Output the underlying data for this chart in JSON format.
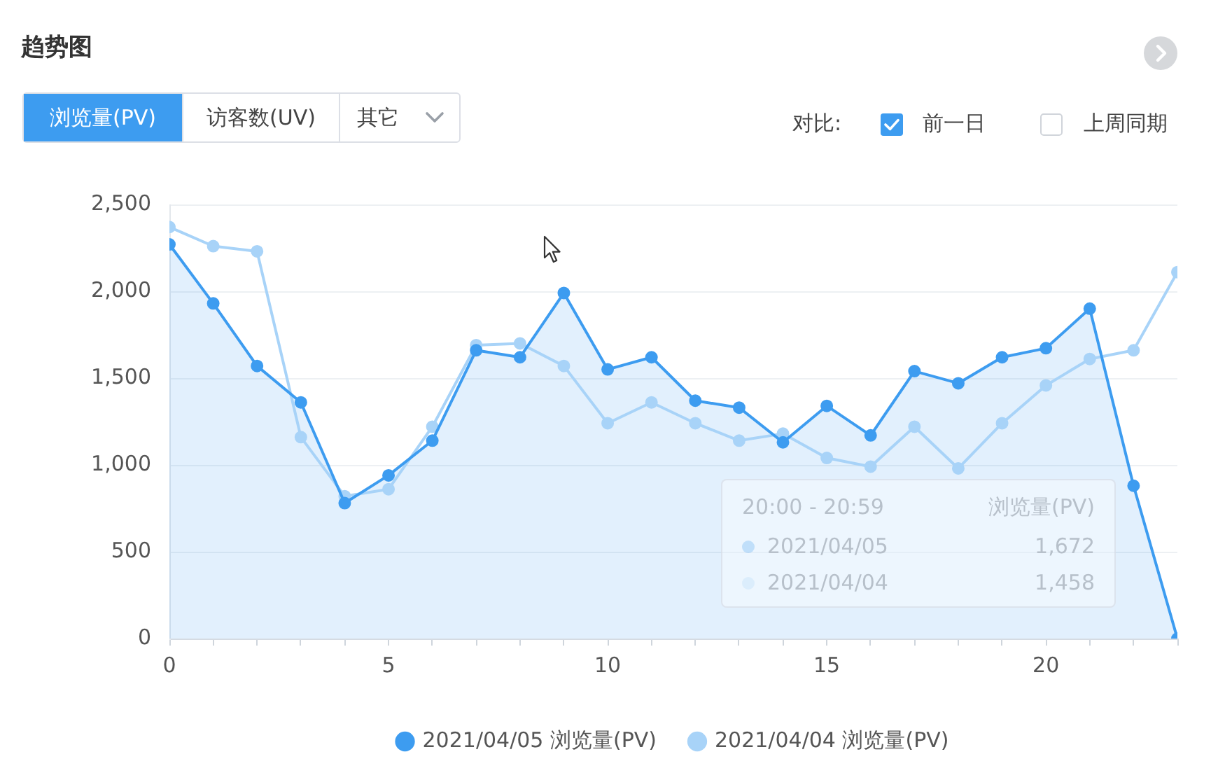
{
  "chart_data": {
    "type": "line",
    "title": "趋势图",
    "x": [
      0,
      1,
      2,
      3,
      4,
      5,
      6,
      7,
      8,
      9,
      10,
      11,
      12,
      13,
      14,
      15,
      16,
      17,
      18,
      19,
      20,
      21,
      22,
      23
    ],
    "series": [
      {
        "name": "2021/04/05 浏览量(PV)",
        "type": "area",
        "color": "#3d9cf0",
        "values": [
          2270,
          1930,
          1570,
          1360,
          780,
          940,
          1140,
          1660,
          1620,
          1990,
          1550,
          1620,
          1370,
          1330,
          1130,
          1340,
          1170,
          1540,
          1470,
          1620,
          1672,
          1900,
          880,
          0
        ]
      },
      {
        "name": "2021/04/04 浏览量(PV)",
        "type": "line",
        "color": "#a8d3f8",
        "values": [
          2370,
          2260,
          2230,
          1160,
          820,
          860,
          1220,
          1690,
          1700,
          1570,
          1240,
          1360,
          1240,
          1140,
          1180,
          1040,
          990,
          1220,
          980,
          1240,
          1458,
          1610,
          1660,
          2110
        ]
      }
    ],
    "xlim": [
      0,
      23
    ],
    "xticks": [
      0,
      {
        "value": 1,
        "label": null
      },
      {
        "value": 2,
        "label": null
      },
      {
        "value": 3,
        "label": null
      },
      {
        "value": 4,
        "label": null
      },
      5,
      {
        "value": 6,
        "label": null
      },
      {
        "value": 7,
        "label": null
      },
      {
        "value": 8,
        "label": null
      },
      {
        "value": 9,
        "label": null
      },
      10,
      {
        "value": 11,
        "label": null
      },
      {
        "value": 12,
        "label": null
      },
      {
        "value": 13,
        "label": null
      },
      {
        "value": 14,
        "label": null
      },
      15,
      {
        "value": 16,
        "label": null
      },
      {
        "value": 17,
        "label": null
      },
      {
        "value": 18,
        "label": null
      },
      {
        "value": 19,
        "label": null
      },
      20,
      {
        "value": 21,
        "label": null
      },
      {
        "value": 22,
        "label": null
      },
      {
        "value": 23,
        "label": null
      }
    ],
    "ylim": [
      0,
      2500
    ],
    "yticks": [
      0,
      500,
      {
        "value": 1000,
        "label": "1,000"
      },
      {
        "value": 1500,
        "label": "1,500"
      },
      {
        "value": 2000,
        "label": "2,000"
      },
      {
        "value": 2500,
        "label": "2,500"
      }
    ],
    "grid": "y",
    "legend": "bottom",
    "marker": "circle",
    "line_style": "solid",
    "annotations": [
      "浏览量(PV)",
      "访客数(UV)",
      "其它",
      "对比:",
      "前一日",
      "上周同期",
      "20:00 - 20:59",
      "浏览量(PV)",
      "2021/04/05",
      "1,672",
      "2021/04/04",
      "1,458"
    ]
  }
}
